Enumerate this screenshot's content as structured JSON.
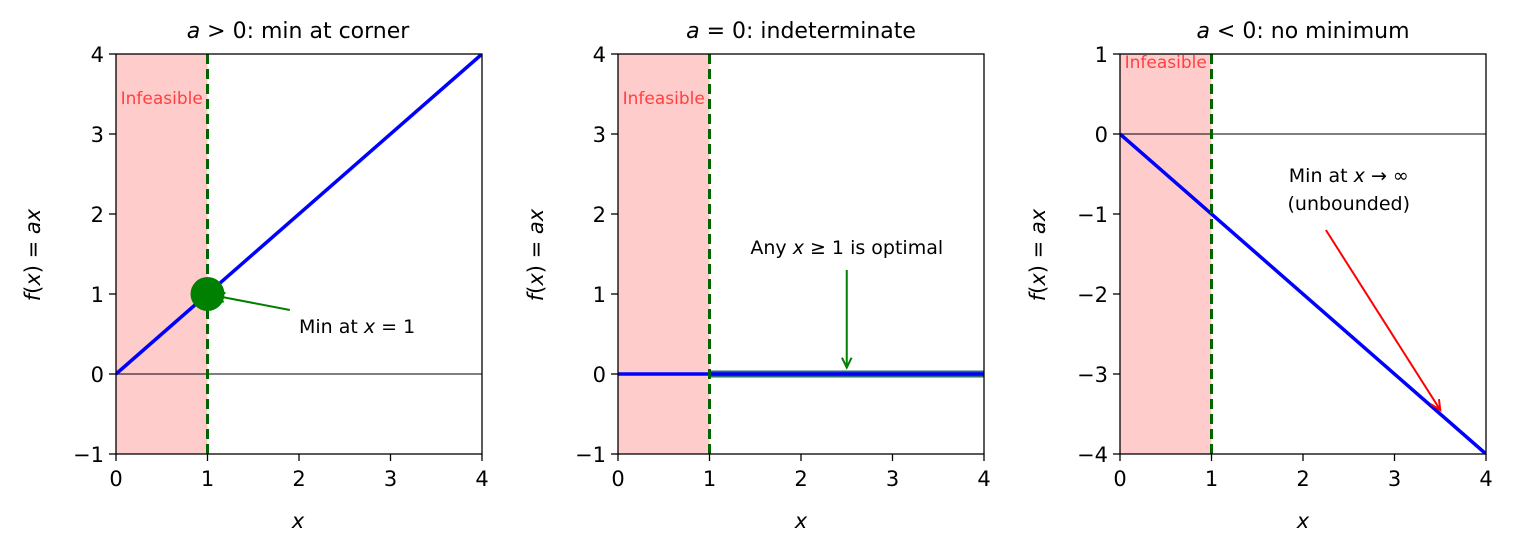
{
  "chart_data": [
    {
      "type": "line",
      "title": "a > 0: min at corner",
      "xlabel": "x",
      "ylabel": "f(x) = ax",
      "xlim": [
        0,
        4
      ],
      "ylim": [
        -1,
        4
      ],
      "xticks": [
        "0",
        "1",
        "2",
        "3",
        "4"
      ],
      "yticks": [
        "−1",
        "0",
        "1",
        "2",
        "3",
        "4"
      ],
      "xtick_values": [
        0,
        1,
        2,
        3,
        4
      ],
      "ytick_values": [
        -1,
        0,
        1,
        2,
        3,
        4
      ],
      "series": [
        {
          "x": [
            0,
            4
          ],
          "y": [
            0,
            4
          ],
          "color": "#0000ff"
        }
      ],
      "infeasible_region": {
        "x": [
          0,
          1
        ],
        "label": "Infeasible",
        "label_pos": [
          0.5,
          3.45
        ]
      },
      "constraint_x": 1,
      "zero_line": true,
      "highlight_point": {
        "x": 1,
        "y": 1,
        "color": "#008000"
      },
      "annotation": {
        "text": "Min at x = 1",
        "text_pos": [
          2,
          0.6
        ],
        "arrow_from": [
          1.9,
          0.8
        ],
        "arrow_to": [
          1.08,
          0.98
        ],
        "color": "#008000"
      }
    },
    {
      "type": "line",
      "title": "a = 0: indeterminate",
      "xlabel": "x",
      "ylabel": "f(x) = ax",
      "xlim": [
        0,
        4
      ],
      "ylim": [
        -1,
        4
      ],
      "xticks": [
        "0",
        "1",
        "2",
        "3",
        "4"
      ],
      "yticks": [
        "−1",
        "0",
        "1",
        "2",
        "3",
        "4"
      ],
      "xtick_values": [
        0,
        1,
        2,
        3,
        4
      ],
      "ytick_values": [
        -1,
        0,
        1,
        2,
        3,
        4
      ],
      "series": [
        {
          "x": [
            0,
            4
          ],
          "y": [
            0,
            0
          ],
          "color": "#0000ff"
        }
      ],
      "optimal_segment": {
        "x": [
          1,
          4
        ],
        "y": 0,
        "color": "#2e6e6e"
      },
      "infeasible_region": {
        "x": [
          0,
          1
        ],
        "label": "Infeasible",
        "label_pos": [
          0.5,
          3.45
        ]
      },
      "constraint_x": 1,
      "zero_line": true,
      "annotation": {
        "text": "Any x ≥ 1 is optimal",
        "text_pos": [
          2.5,
          1.55
        ],
        "arrow_from": [
          2.5,
          1.3
        ],
        "arrow_to": [
          2.5,
          0.08
        ],
        "color": "#008000"
      }
    },
    {
      "type": "line",
      "title": "a < 0: no minimum",
      "xlabel": "x",
      "ylabel": "f(x) = ax",
      "xlim": [
        0,
        4
      ],
      "ylim": [
        -4,
        1
      ],
      "xticks": [
        "0",
        "1",
        "2",
        "3",
        "4"
      ],
      "yticks": [
        "−4",
        "−3",
        "−2",
        "−1",
        "0",
        "1"
      ],
      "xtick_values": [
        0,
        1,
        2,
        3,
        4
      ],
      "ytick_values": [
        -4,
        -3,
        -2,
        -1,
        0,
        1
      ],
      "series": [
        {
          "x": [
            0,
            4
          ],
          "y": [
            0,
            -4
          ],
          "color": "#0000ff"
        }
      ],
      "infeasible_region": {
        "x": [
          0,
          1
        ],
        "label": "Infeasible",
        "label_pos": [
          0.5,
          0.9
        ]
      },
      "constraint_x": 1,
      "zero_line": true,
      "annotation": {
        "text": "Min at x → ∞",
        "text2": "(unbounded)",
        "text_pos": [
          2.5,
          -0.55
        ],
        "arrow_from": [
          2.25,
          -1.2
        ],
        "arrow_to": [
          3.5,
          -3.45
        ],
        "color": "#ff0000"
      }
    }
  ],
  "colors": {
    "infeasible_fill": "#ffcccc",
    "infeasible_text": "#ff4040",
    "constraint_line": "#006400",
    "line": "#0000ff"
  }
}
